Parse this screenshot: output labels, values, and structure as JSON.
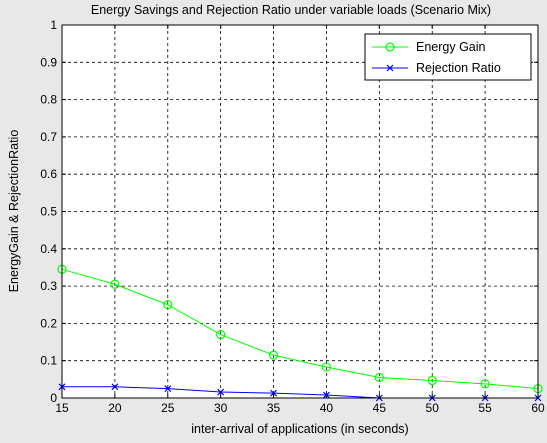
{
  "chart_data": {
    "type": "line",
    "title": "Energy Savings and Rejection Ratio under variable loads (Scenario Mix)",
    "xlabel": "inter-arrival of applications (in seconds)",
    "ylabel": "EnergyGain & RejectionRatio",
    "x": [
      15,
      20,
      25,
      30,
      35,
      40,
      45,
      50,
      55,
      60
    ],
    "xlim": [
      15,
      60
    ],
    "ylim": [
      0,
      1
    ],
    "xticks": [
      15,
      20,
      25,
      30,
      35,
      40,
      45,
      50,
      55,
      60
    ],
    "yticks": [
      0,
      0.1,
      0.2,
      0.3,
      0.4,
      0.5,
      0.6,
      0.7,
      0.8,
      0.9,
      1
    ],
    "grid": true,
    "legend_position": "top-right",
    "series": [
      {
        "name": "Energy Gain",
        "color": "#00ff00",
        "marker": "circle",
        "values": [
          0.345,
          0.305,
          0.25,
          0.17,
          0.115,
          0.083,
          0.055,
          0.047,
          0.038,
          0.025
        ]
      },
      {
        "name": "Rejection Ratio",
        "color": "#0000ff",
        "marker": "x",
        "values": [
          0.03,
          0.03,
          0.025,
          0.016,
          0.013,
          0.008,
          0,
          0,
          0,
          0
        ]
      }
    ]
  }
}
